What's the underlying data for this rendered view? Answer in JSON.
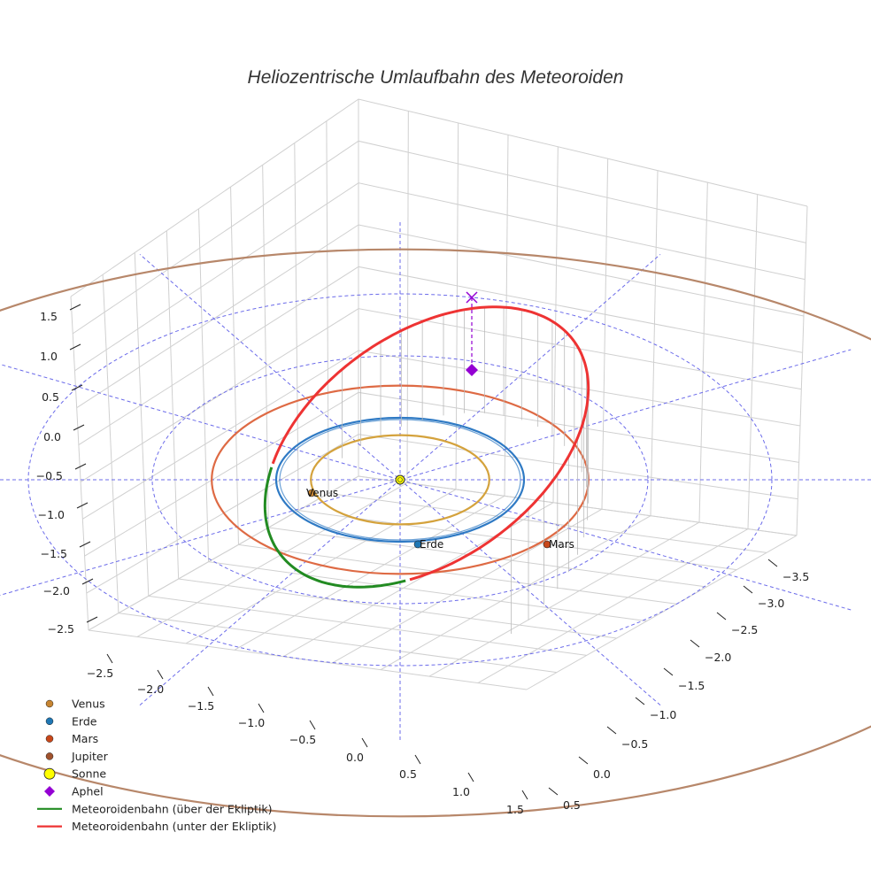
{
  "chart_data": {
    "type": "line",
    "title": "Heliozentrische Umlaufbahn des Meteoroiden",
    "axes": {
      "x_ticks": [
        "−2.5",
        "−2.0",
        "−1.5",
        "−1.0",
        "−0.5",
        "0.0",
        "0.5",
        "1.0",
        "1.5"
      ],
      "y_ticks": [
        "−3.5",
        "−3.0",
        "−2.5",
        "−2.0",
        "−1.5",
        "−1.0",
        "−0.5",
        "0.0",
        "0.5"
      ],
      "z_ticks": [
        "1.5",
        "1.0",
        "0.5",
        "0.0",
        "−0.5",
        "−1.0",
        "−1.5",
        "−2.0",
        "−2.5"
      ]
    },
    "planets": [
      {
        "name": "Venus",
        "orbit_radius_au": 0.72,
        "color": "#d4a23c",
        "marker_color": "#c78532",
        "label": "Venus"
      },
      {
        "name": "Erde",
        "orbit_radius_au": 1.0,
        "color": "#2f7ac4",
        "marker_color": "#1f77b4",
        "label": "Erde"
      },
      {
        "name": "Mars",
        "orbit_radius_au": 1.52,
        "color": "#de6a44",
        "marker_color": "#c8471a",
        "label": "Mars"
      },
      {
        "name": "Jupiter",
        "orbit_radius_au": 5.2,
        "color": "#b7876a",
        "marker_color": "#a0522d"
      }
    ],
    "sun": {
      "name": "Sonne",
      "color": "#ffff00"
    },
    "aphel": {
      "name": "Aphel",
      "color": "#9400d3"
    },
    "meteoroid_orbit": {
      "above_label": "Meteoroidenbahn (über der Ekliptik)",
      "above_color": "#228b22",
      "below_label": "Meteoroidenbahn (unter der Ekliptik)",
      "below_color": "#ee3333"
    },
    "reference_circles_au": [
      1.0,
      2.0,
      3.0
    ],
    "legend": [
      {
        "label": "Venus",
        "kind": "dot",
        "color": "#c78532"
      },
      {
        "label": "Erde",
        "kind": "dot",
        "color": "#1f77b4"
      },
      {
        "label": "Mars",
        "kind": "dot",
        "color": "#c8471a"
      },
      {
        "label": "Jupiter",
        "kind": "dot",
        "color": "#a0522d"
      },
      {
        "label": "Sonne",
        "kind": "sun",
        "color": "#ffff00"
      },
      {
        "label": "Aphel",
        "kind": "diamond",
        "color": "#9400d3"
      },
      {
        "label": "Meteoroidenbahn (über der Ekliptik)",
        "kind": "line",
        "color": "#228b22"
      },
      {
        "label": "Meteoroidenbahn (unter der Ekliptik)",
        "kind": "line",
        "color": "#ee3333"
      }
    ],
    "legend_position": "bottom-left"
  }
}
